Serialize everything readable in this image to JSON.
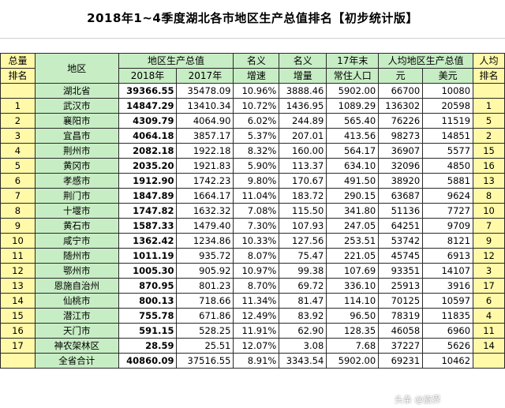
{
  "title": "2018年1~4季度湖北各市地区生产总值排名【初步统计版】",
  "headers": {
    "rank_total_1": "总量",
    "rank_total_2": "排名",
    "region": "地区",
    "gdp_group": "地区生产总值",
    "gdp_2018": "2018年",
    "gdp_2017": "2017年",
    "nominal_growth_1": "名义",
    "nominal_growth_2": "增速",
    "nominal_increase_1": "名义",
    "nominal_increase_2": "增量",
    "pop_1": "17年末",
    "pop_2": "常住人口",
    "per_capita_group": "人均地区生产总值",
    "per_capita_yuan": "元",
    "per_capita_usd": "美元",
    "per_capita_rank_1": "人均",
    "per_capita_rank_2": "排名"
  },
  "rows": [
    {
      "rank": "",
      "region": "湖北省",
      "gdp2018": "39366.55",
      "gdp2017": "35478.09",
      "growth": "10.96%",
      "increase": "3888.46",
      "pop": "5902.00",
      "pc_yuan": "66700",
      "pc_usd": "10080",
      "pc_rank": ""
    },
    {
      "rank": "1",
      "region": "武汉市",
      "gdp2018": "14847.29",
      "gdp2017": "13410.34",
      "growth": "10.72%",
      "increase": "1436.95",
      "pop": "1089.29",
      "pc_yuan": "136302",
      "pc_usd": "20598",
      "pc_rank": "1"
    },
    {
      "rank": "2",
      "region": "襄阳市",
      "gdp2018": "4309.79",
      "gdp2017": "4064.90",
      "growth": "6.02%",
      "increase": "244.89",
      "pop": "565.40",
      "pc_yuan": "76226",
      "pc_usd": "11519",
      "pc_rank": "5"
    },
    {
      "rank": "3",
      "region": "宜昌市",
      "gdp2018": "4064.18",
      "gdp2017": "3857.17",
      "growth": "5.37%",
      "increase": "207.01",
      "pop": "413.56",
      "pc_yuan": "98273",
      "pc_usd": "14851",
      "pc_rank": "2"
    },
    {
      "rank": "4",
      "region": "荆州市",
      "gdp2018": "2082.18",
      "gdp2017": "1922.18",
      "growth": "8.32%",
      "increase": "160.00",
      "pop": "564.17",
      "pc_yuan": "36907",
      "pc_usd": "5577",
      "pc_rank": "15"
    },
    {
      "rank": "5",
      "region": "黄冈市",
      "gdp2018": "2035.20",
      "gdp2017": "1921.83",
      "growth": "5.90%",
      "increase": "113.37",
      "pop": "634.10",
      "pc_yuan": "32096",
      "pc_usd": "4850",
      "pc_rank": "16"
    },
    {
      "rank": "6",
      "region": "孝感市",
      "gdp2018": "1912.90",
      "gdp2017": "1742.23",
      "growth": "9.80%",
      "increase": "170.67",
      "pop": "491.50",
      "pc_yuan": "38920",
      "pc_usd": "5881",
      "pc_rank": "13"
    },
    {
      "rank": "7",
      "region": "荆门市",
      "gdp2018": "1847.89",
      "gdp2017": "1664.17",
      "growth": "11.04%",
      "increase": "183.72",
      "pop": "290.15",
      "pc_yuan": "63687",
      "pc_usd": "9624",
      "pc_rank": "8"
    },
    {
      "rank": "8",
      "region": "十堰市",
      "gdp2018": "1747.82",
      "gdp2017": "1632.32",
      "growth": "7.08%",
      "increase": "115.50",
      "pop": "341.80",
      "pc_yuan": "51136",
      "pc_usd": "7727",
      "pc_rank": "10"
    },
    {
      "rank": "9",
      "region": "黄石市",
      "gdp2018": "1587.33",
      "gdp2017": "1479.40",
      "growth": "7.30%",
      "increase": "107.93",
      "pop": "247.05",
      "pc_yuan": "64251",
      "pc_usd": "9709",
      "pc_rank": "7"
    },
    {
      "rank": "10",
      "region": "咸宁市",
      "gdp2018": "1362.42",
      "gdp2017": "1234.86",
      "growth": "10.33%",
      "increase": "127.56",
      "pop": "253.51",
      "pc_yuan": "53742",
      "pc_usd": "8121",
      "pc_rank": "9"
    },
    {
      "rank": "11",
      "region": "随州市",
      "gdp2018": "1011.19",
      "gdp2017": "935.72",
      "growth": "8.07%",
      "increase": "75.47",
      "pop": "221.05",
      "pc_yuan": "45745",
      "pc_usd": "6913",
      "pc_rank": "12"
    },
    {
      "rank": "12",
      "region": "鄂州市",
      "gdp2018": "1005.30",
      "gdp2017": "905.92",
      "growth": "10.97%",
      "increase": "99.38",
      "pop": "107.69",
      "pc_yuan": "93351",
      "pc_usd": "14107",
      "pc_rank": "3"
    },
    {
      "rank": "13",
      "region": "恩施自治州",
      "gdp2018": "870.95",
      "gdp2017": "801.23",
      "growth": "8.70%",
      "increase": "69.72",
      "pop": "336.10",
      "pc_yuan": "25913",
      "pc_usd": "3916",
      "pc_rank": "17"
    },
    {
      "rank": "14",
      "region": "仙桃市",
      "gdp2018": "800.13",
      "gdp2017": "718.66",
      "growth": "11.34%",
      "increase": "81.47",
      "pop": "114.10",
      "pc_yuan": "70125",
      "pc_usd": "10597",
      "pc_rank": "6"
    },
    {
      "rank": "15",
      "region": "潜江市",
      "gdp2018": "755.78",
      "gdp2017": "671.86",
      "growth": "12.49%",
      "increase": "83.92",
      "pop": "96.50",
      "pc_yuan": "78319",
      "pc_usd": "11835",
      "pc_rank": "4"
    },
    {
      "rank": "16",
      "region": "天门市",
      "gdp2018": "591.15",
      "gdp2017": "528.25",
      "growth": "11.91%",
      "increase": "62.90",
      "pop": "128.35",
      "pc_yuan": "46058",
      "pc_usd": "6960",
      "pc_rank": "11"
    },
    {
      "rank": "17",
      "region": "神农架林区",
      "gdp2018": "28.59",
      "gdp2017": "25.51",
      "growth": "12.07%",
      "increase": "3.08",
      "pop": "7.68",
      "pc_yuan": "37227",
      "pc_usd": "5626",
      "pc_rank": "14"
    },
    {
      "rank": "",
      "region": "全省合计",
      "gdp2018": "40860.09",
      "gdp2017": "37516.55",
      "growth": "8.91%",
      "increase": "3343.54",
      "pop": "5902.00",
      "pc_yuan": "69231",
      "pc_usd": "10462",
      "pc_rank": ""
    }
  ],
  "watermark": "头条 @旅界"
}
